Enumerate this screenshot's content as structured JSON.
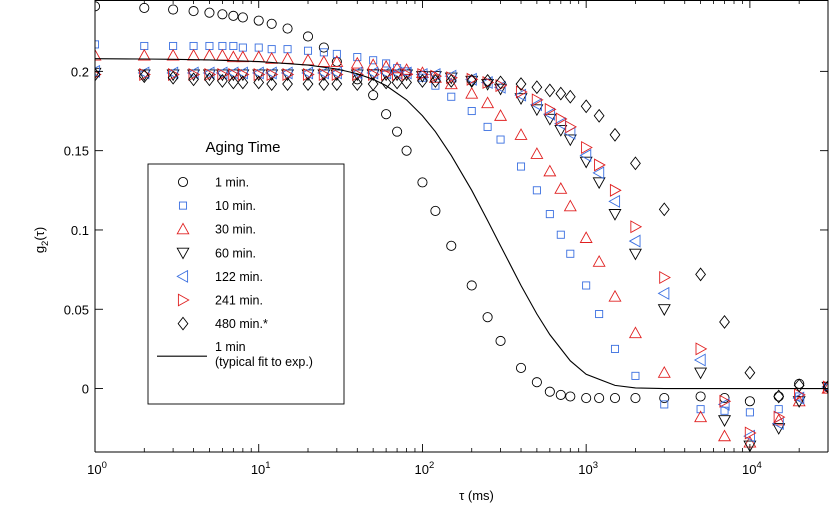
{
  "chart_data": {
    "type": "scatter",
    "x_scale": "log",
    "xlim": [
      1,
      30000
    ],
    "ylim": [
      -0.04,
      0.245
    ],
    "xlabel": "τ (ms)",
    "ylabel_main": "g",
    "ylabel_sub": "2",
    "ylabel_tail": "(τ)",
    "x_ticks": [
      {
        "value": 1,
        "base": "10",
        "exp": "0"
      },
      {
        "value": 10,
        "base": "10",
        "exp": "1"
      },
      {
        "value": 100,
        "base": "10",
        "exp": "2"
      },
      {
        "value": 1000,
        "base": "10",
        "exp": "3"
      },
      {
        "value": 10000,
        "base": "10",
        "exp": "4"
      }
    ],
    "y_ticks": [
      {
        "value": 0,
        "label": "0"
      },
      {
        "value": 0.05,
        "label": "0.05"
      },
      {
        "value": 0.1,
        "label": "0.1"
      },
      {
        "value": 0.15,
        "label": "0.15"
      },
      {
        "value": 0.2,
        "label": "0.2"
      }
    ],
    "legend": {
      "title": "Aging Time",
      "position": "center-left"
    },
    "series": [
      {
        "name": "1 min.",
        "marker": "circle",
        "color": "#000000",
        "x": [
          1,
          2,
          3,
          4,
          5,
          6,
          7,
          8,
          10,
          12,
          15,
          20,
          25,
          30,
          40,
          50,
          60,
          70,
          80,
          100,
          120,
          150,
          200,
          250,
          300,
          400,
          500,
          600,
          700,
          800,
          1000,
          1200,
          1500,
          2000,
          3000,
          5000,
          7000,
          10000,
          15000,
          20000,
          30000
        ],
        "y": [
          0.241,
          0.24,
          0.239,
          0.238,
          0.237,
          0.236,
          0.235,
          0.234,
          0.232,
          0.23,
          0.227,
          0.222,
          0.215,
          0.206,
          0.195,
          0.185,
          0.173,
          0.162,
          0.15,
          0.13,
          0.112,
          0.09,
          0.065,
          0.045,
          0.03,
          0.013,
          0.004,
          -0.002,
          -0.004,
          -0.005,
          -0.006,
          -0.006,
          -0.006,
          -0.006,
          -0.006,
          -0.005,
          -0.006,
          -0.008,
          -0.005,
          0.003,
          0.001
        ]
      },
      {
        "name": "10 min.",
        "marker": "square",
        "color": "#3a6fe0",
        "x": [
          1,
          2,
          3,
          4,
          5,
          6,
          7,
          8,
          10,
          12,
          15,
          20,
          25,
          30,
          40,
          50,
          60,
          70,
          80,
          100,
          120,
          150,
          200,
          250,
          300,
          400,
          500,
          600,
          700,
          800,
          1000,
          1200,
          1500,
          2000,
          3000,
          5000,
          7000,
          10000,
          15000,
          20000,
          30000
        ],
        "y": [
          0.217,
          0.216,
          0.216,
          0.216,
          0.216,
          0.216,
          0.216,
          0.215,
          0.215,
          0.214,
          0.214,
          0.213,
          0.212,
          0.211,
          0.209,
          0.207,
          0.205,
          0.202,
          0.2,
          0.196,
          0.191,
          0.184,
          0.175,
          0.165,
          0.157,
          0.14,
          0.125,
          0.11,
          0.097,
          0.085,
          0.065,
          0.047,
          0.025,
          0.008,
          -0.01,
          -0.013,
          -0.014,
          -0.015,
          -0.013,
          -0.005,
          0.001
        ]
      },
      {
        "name": "30 min.",
        "marker": "triangle-up",
        "color": "#e02020",
        "x": [
          1,
          2,
          3,
          4,
          5,
          6,
          7,
          8,
          10,
          12,
          15,
          20,
          25,
          30,
          40,
          50,
          60,
          70,
          80,
          100,
          120,
          150,
          200,
          250,
          300,
          400,
          500,
          600,
          700,
          800,
          1000,
          1200,
          1500,
          2000,
          3000,
          5000,
          7000,
          10000,
          15000,
          20000,
          30000
        ],
        "y": [
          0.21,
          0.21,
          0.21,
          0.21,
          0.21,
          0.21,
          0.209,
          0.209,
          0.209,
          0.208,
          0.208,
          0.207,
          0.206,
          0.206,
          0.205,
          0.204,
          0.203,
          0.202,
          0.201,
          0.199,
          0.196,
          0.192,
          0.186,
          0.18,
          0.172,
          0.16,
          0.148,
          0.137,
          0.126,
          0.115,
          0.095,
          0.08,
          0.058,
          0.035,
          0.01,
          -0.018,
          -0.03,
          -0.034,
          -0.02,
          -0.008,
          0.0
        ]
      },
      {
        "name": "60 min.",
        "marker": "triangle-down",
        "color": "#000000",
        "x": [
          1,
          2,
          3,
          4,
          5,
          6,
          7,
          8,
          10,
          12,
          15,
          20,
          25,
          30,
          40,
          50,
          60,
          70,
          80,
          100,
          120,
          150,
          200,
          250,
          300,
          400,
          500,
          600,
          700,
          800,
          1000,
          1200,
          1500,
          2000,
          3000,
          5000,
          7000,
          10000,
          15000,
          20000,
          30000
        ],
        "y": [
          0.199,
          0.198,
          0.198,
          0.198,
          0.198,
          0.198,
          0.198,
          0.198,
          0.198,
          0.198,
          0.198,
          0.198,
          0.198,
          0.198,
          0.198,
          0.198,
          0.198,
          0.198,
          0.198,
          0.197,
          0.197,
          0.196,
          0.194,
          0.192,
          0.189,
          0.183,
          0.176,
          0.17,
          0.163,
          0.157,
          0.143,
          0.13,
          0.11,
          0.085,
          0.05,
          0.01,
          -0.02,
          -0.036,
          -0.025,
          -0.008,
          0.001
        ]
      },
      {
        "name": "122 min.",
        "marker": "triangle-left",
        "color": "#3a6fe0",
        "x": [
          1,
          2,
          3,
          4,
          5,
          6,
          7,
          8,
          10,
          12,
          15,
          20,
          25,
          30,
          40,
          50,
          60,
          70,
          80,
          100,
          120,
          150,
          200,
          250,
          300,
          400,
          500,
          600,
          700,
          800,
          1000,
          1200,
          1500,
          2000,
          3000,
          5000,
          7000,
          10000,
          15000,
          20000,
          30000
        ],
        "y": [
          0.2,
          0.199,
          0.199,
          0.199,
          0.199,
          0.199,
          0.199,
          0.199,
          0.199,
          0.199,
          0.199,
          0.199,
          0.199,
          0.199,
          0.199,
          0.199,
          0.199,
          0.199,
          0.199,
          0.198,
          0.198,
          0.197,
          0.195,
          0.193,
          0.19,
          0.185,
          0.179,
          0.173,
          0.167,
          0.161,
          0.147,
          0.136,
          0.118,
          0.093,
          0.06,
          0.018,
          -0.01,
          -0.03,
          -0.022,
          -0.006,
          0.001
        ]
      },
      {
        "name": "241 min.",
        "marker": "triangle-right",
        "color": "#e02020",
        "x": [
          1,
          2,
          3,
          4,
          5,
          6,
          7,
          8,
          10,
          12,
          15,
          20,
          25,
          30,
          40,
          50,
          60,
          70,
          80,
          100,
          120,
          150,
          200,
          250,
          300,
          400,
          500,
          600,
          700,
          800,
          1000,
          1200,
          1500,
          2000,
          3000,
          5000,
          7000,
          10000,
          15000,
          20000,
          30000
        ],
        "y": [
          0.198,
          0.198,
          0.198,
          0.198,
          0.198,
          0.198,
          0.198,
          0.198,
          0.198,
          0.198,
          0.198,
          0.198,
          0.198,
          0.198,
          0.198,
          0.198,
          0.198,
          0.198,
          0.198,
          0.198,
          0.197,
          0.196,
          0.195,
          0.193,
          0.191,
          0.187,
          0.182,
          0.176,
          0.17,
          0.165,
          0.152,
          0.141,
          0.125,
          0.102,
          0.07,
          0.025,
          -0.008,
          -0.028,
          -0.018,
          -0.004,
          0.001
        ]
      },
      {
        "name": "480 min.*",
        "marker": "diamond",
        "color": "#000000",
        "x": [
          1,
          2,
          3,
          4,
          5,
          6,
          7,
          8,
          10,
          12,
          15,
          20,
          25,
          30,
          40,
          50,
          60,
          70,
          80,
          100,
          120,
          150,
          200,
          250,
          300,
          400,
          500,
          600,
          700,
          800,
          1000,
          1200,
          1500,
          2000,
          3000,
          5000,
          7000,
          10000,
          15000,
          20000,
          30000
        ],
        "y": [
          0.198,
          0.197,
          0.196,
          0.195,
          0.195,
          0.194,
          0.193,
          0.193,
          0.193,
          0.192,
          0.192,
          0.192,
          0.192,
          0.192,
          0.192,
          0.192,
          0.193,
          0.193,
          0.193,
          0.194,
          0.194,
          0.194,
          0.194,
          0.194,
          0.193,
          0.192,
          0.19,
          0.188,
          0.186,
          0.184,
          0.178,
          0.172,
          0.16,
          0.142,
          0.113,
          0.072,
          0.042,
          0.01,
          -0.005,
          0.002,
          0.001
        ]
      },
      {
        "name": "1 min",
        "name_line2": "(typical fit to exp.)",
        "marker": "line",
        "color": "#000000",
        "x": [
          1,
          2,
          3,
          5,
          10,
          20,
          30,
          40,
          50,
          60,
          80,
          100,
          120,
          150,
          200,
          250,
          300,
          400,
          500,
          600,
          800,
          1000,
          1500,
          2000,
          3000,
          5000,
          10000,
          20000,
          30000
        ],
        "y": [
          0.208,
          0.2078,
          0.2076,
          0.2072,
          0.2062,
          0.204,
          0.2015,
          0.1985,
          0.195,
          0.191,
          0.182,
          0.172,
          0.162,
          0.147,
          0.125,
          0.106,
          0.09,
          0.065,
          0.047,
          0.034,
          0.0175,
          0.009,
          0.002,
          0.0004,
          0.0,
          0.0,
          0.0,
          0.0,
          0.0
        ]
      }
    ]
  }
}
